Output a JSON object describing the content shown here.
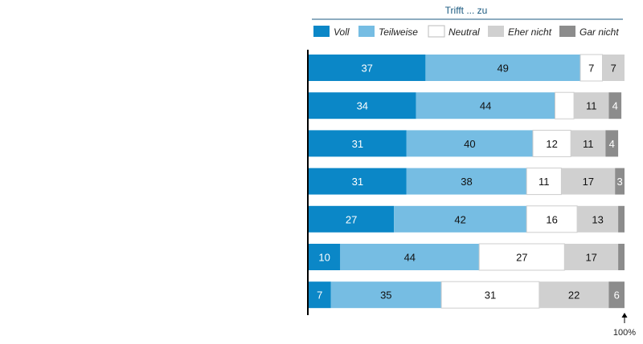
{
  "chart_data": {
    "type": "bar",
    "orientation": "horizontal",
    "stacked": true,
    "title": "Trifft ... zu",
    "legend_position": "top",
    "xlim": [
      0,
      100
    ],
    "reference_label": "100%",
    "series": [
      {
        "name": "Voll",
        "color": "#0b87c7",
        "text_color": "#ffffff",
        "values": [
          37,
          34,
          31,
          31,
          27,
          10,
          7
        ]
      },
      {
        "name": "Teilweise",
        "color": "#76bde3",
        "text_color": "#111111",
        "values": [
          49,
          44,
          40,
          38,
          42,
          44,
          35
        ]
      },
      {
        "name": "Neutral",
        "color": "#ffffff",
        "text_color": "#111111",
        "values": [
          7,
          6,
          12,
          11,
          16,
          27,
          31
        ]
      },
      {
        "name": "Eher nicht",
        "color": "#d0d0d0",
        "text_color": "#111111",
        "values": [
          7,
          11,
          11,
          17,
          13,
          17,
          22
        ]
      },
      {
        "name": "Gar nicht",
        "color": "#8c8c8c",
        "text_color": "#ffffff",
        "values": [
          0,
          4,
          4,
          3,
          2,
          2,
          6
        ]
      }
    ],
    "data_labels": [
      [
        "37",
        "49",
        "7",
        "7",
        ""
      ],
      [
        "34",
        "44",
        "",
        "11",
        "4"
      ],
      [
        "31",
        "40",
        "12",
        "11",
        "4"
      ],
      [
        "31",
        "38",
        "11",
        "17",
        "3"
      ],
      [
        "27",
        "42",
        "16",
        "13",
        ""
      ],
      [
        "10",
        "44",
        "27",
        "17",
        ""
      ],
      [
        "7",
        "35",
        "31",
        "22",
        "6"
      ]
    ]
  }
}
